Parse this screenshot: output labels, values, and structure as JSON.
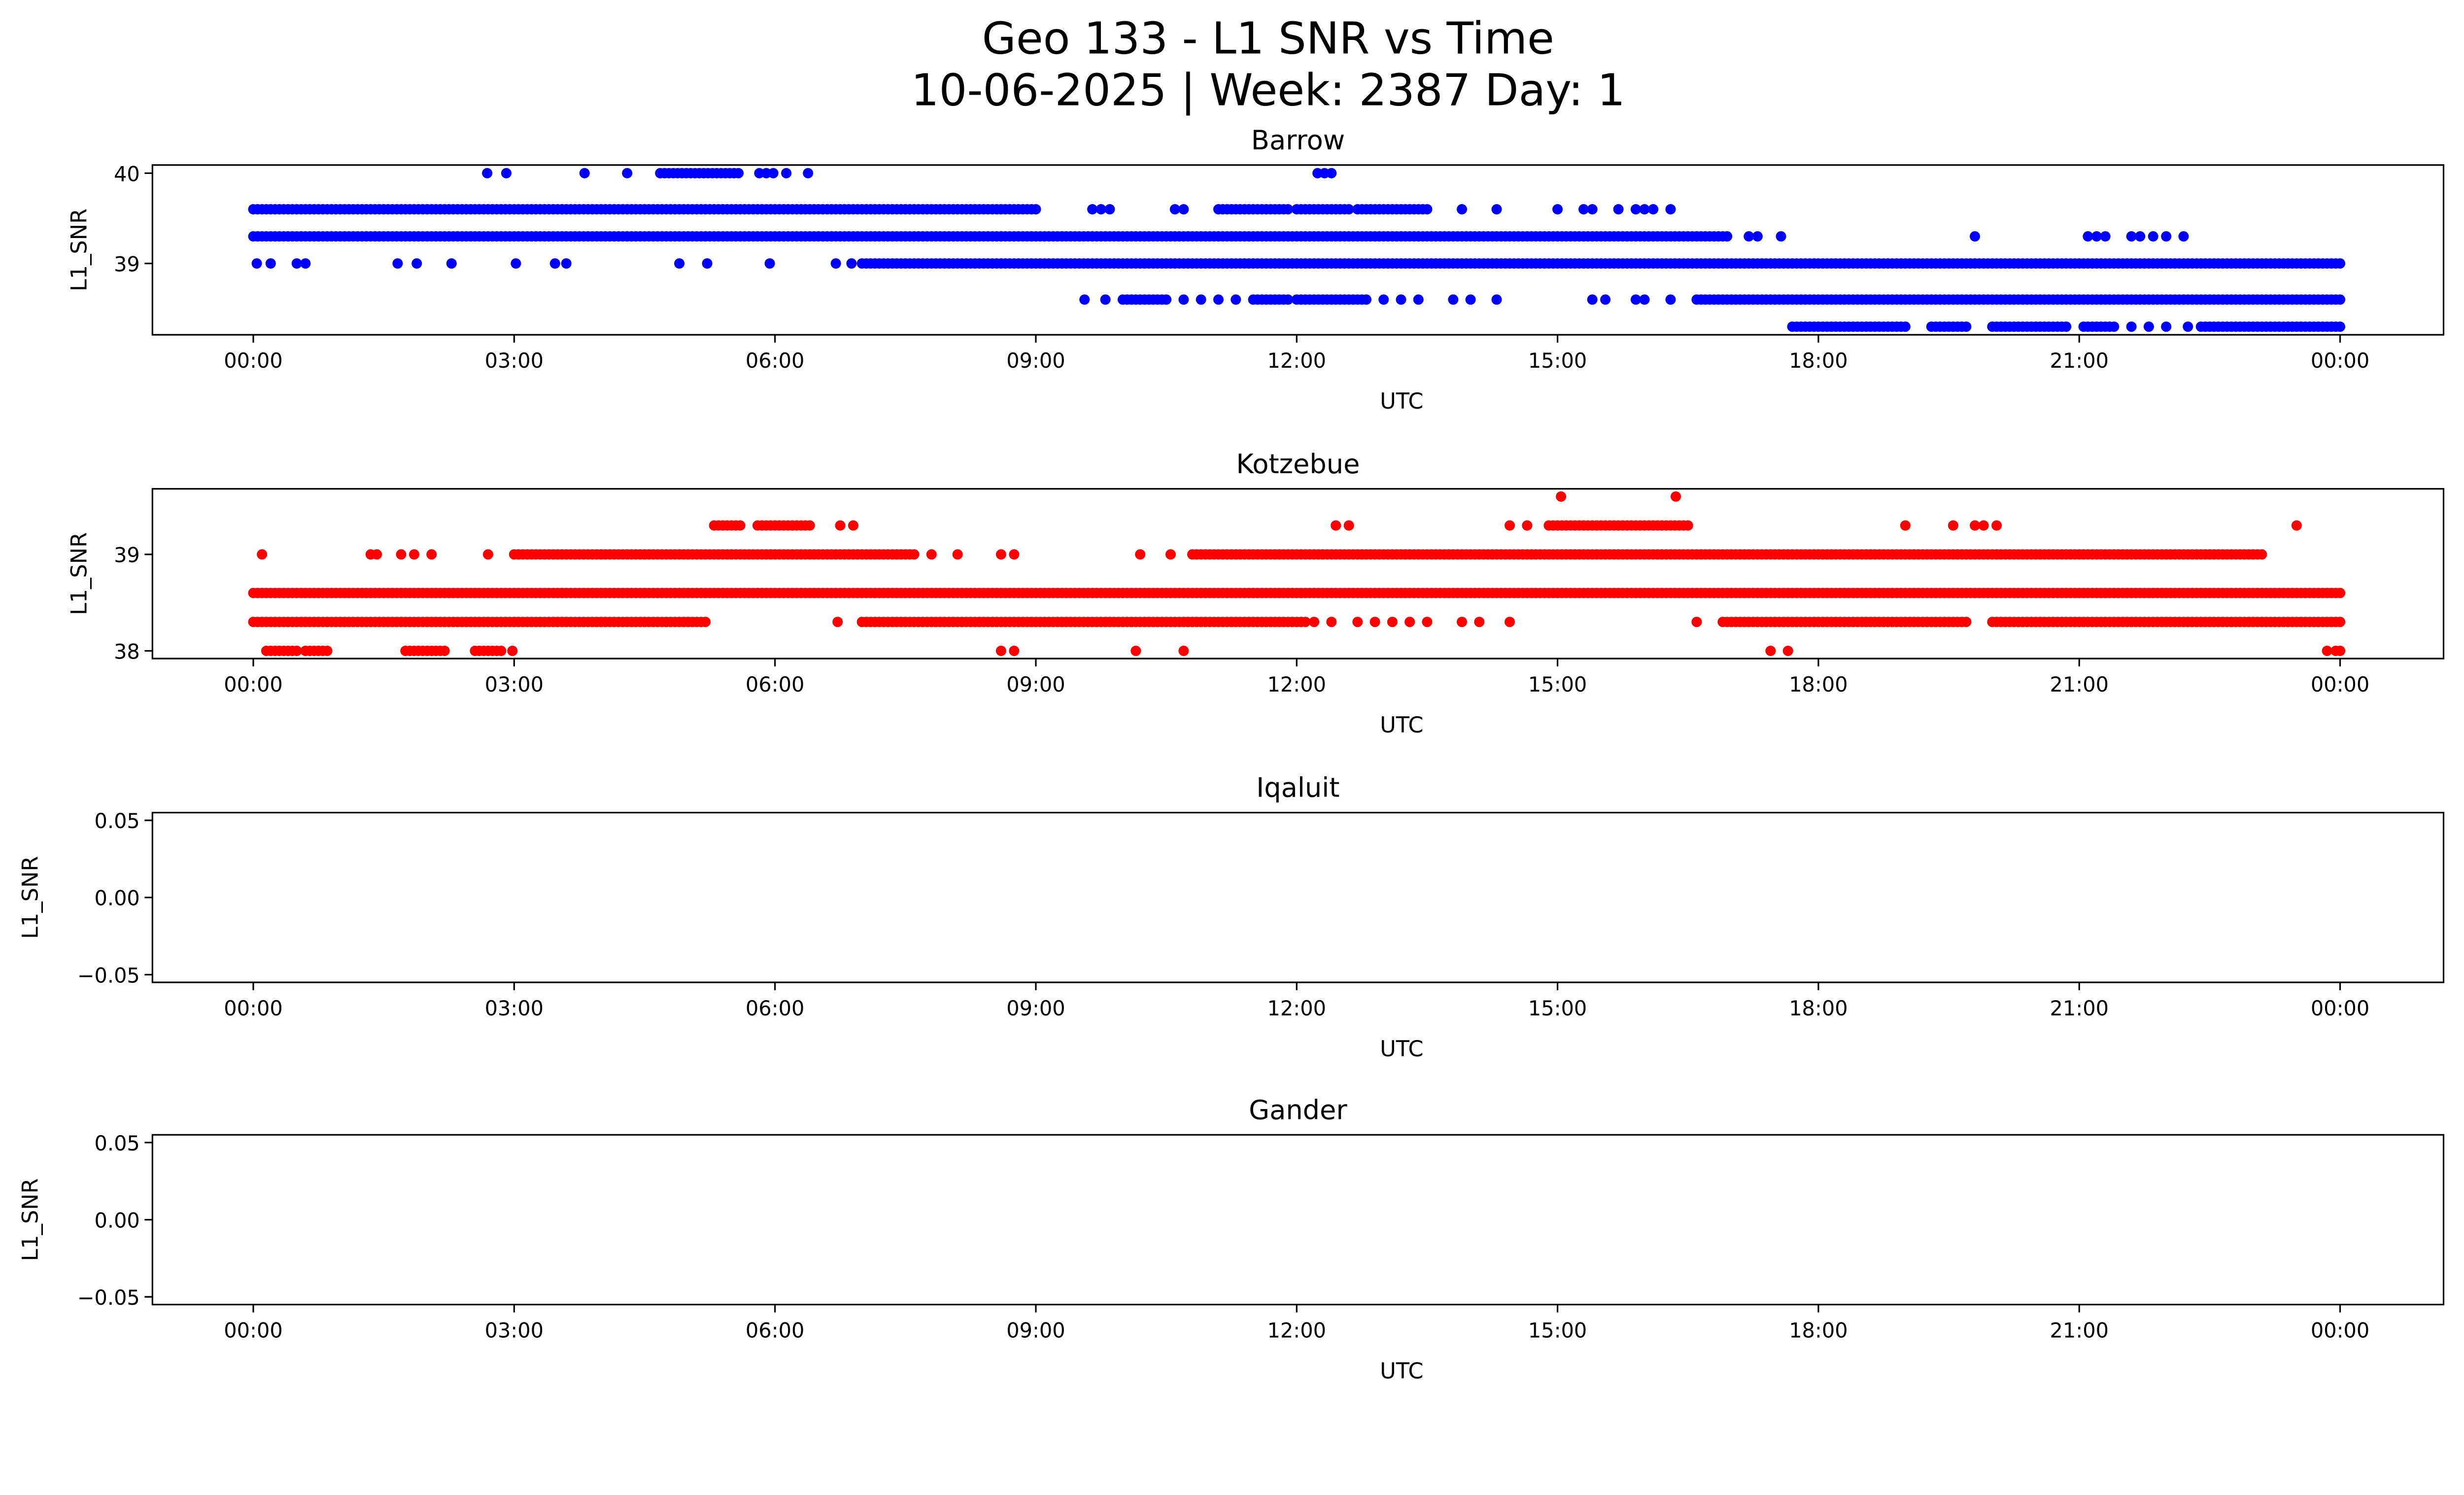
{
  "chart_data": {
    "type": "scatter",
    "title_line1": "Geo 133 - L1 SNR vs Time",
    "title_line2": "10-06-2025 | Week: 2387 Day: 1",
    "x_tick_labels": [
      "00:00",
      "03:00",
      "06:00",
      "09:00",
      "12:00",
      "15:00",
      "18:00",
      "21:00",
      "00:00"
    ],
    "x_tick_hours": [
      0,
      3,
      6,
      9,
      12,
      15,
      18,
      21,
      24
    ],
    "xlim_hours": [
      -1.16,
      25.19
    ],
    "subplots": [
      {
        "title": "Barrow",
        "xlabel": "UTC",
        "ylabel": "L1_SNR",
        "color": "#0000ff",
        "ylim": [
          38.21,
          40.09
        ],
        "yticks": [
          39,
          40
        ],
        "ytick_labels": [
          "39",
          "40"
        ],
        "levels": [
          {
            "snr": 40.0,
            "runs": [
              [
                4.68,
                5.6
              ]
            ],
            "points": [
              2.69,
              2.91,
              3.81,
              4.3,
              5.82,
              5.9,
              5.98,
              6.13,
              6.38,
              12.24,
              12.32,
              12.4
            ]
          },
          {
            "snr": 39.6,
            "runs": [
              [
                0,
                9.02
              ],
              [
                11.1,
                11.9
              ],
              [
                12.0,
                12.6
              ],
              [
                12.7,
                13.5
              ]
            ],
            "points": [
              9.65,
              9.75,
              9.85,
              10.6,
              10.7,
              13.9,
              14.3,
              15.0,
              15.3,
              15.4,
              15.7,
              15.9,
              16.0,
              16.1,
              16.3
            ]
          },
          {
            "snr": 39.3,
            "runs": [
              [
                0,
                16.97
              ]
            ],
            "points": [
              17.2,
              17.3,
              17.57,
              19.8,
              21.1,
              21.2,
              21.3,
              21.6,
              21.7,
              21.85,
              22.0,
              22.2
            ]
          },
          {
            "snr": 39.0,
            "runs": [
              [
                7.0,
                24.0
              ]
            ],
            "points": [
              0.04,
              0.2,
              0.5,
              0.6,
              1.66,
              1.88,
              2.28,
              3.02,
              3.47,
              3.6,
              4.9,
              5.22,
              5.94,
              6.7,
              6.88
            ]
          },
          {
            "snr": 38.6,
            "runs": [
              [
                10.0,
                10.5
              ],
              [
                11.5,
                11.9
              ],
              [
                12.0,
                12.8
              ],
              [
                16.6,
                24.0
              ]
            ],
            "points": [
              9.56,
              9.8,
              10.7,
              10.9,
              11.1,
              11.3,
              13.0,
              13.2,
              13.4,
              13.8,
              14.0,
              14.3,
              15.4,
              15.55,
              15.9,
              16.0,
              16.3
            ]
          },
          {
            "snr": 38.3,
            "runs": [
              [
                17.7,
                19.0
              ],
              [
                19.3,
                19.7
              ],
              [
                20.0,
                20.85
              ],
              [
                21.05,
                21.4
              ],
              [
                22.4,
                24.0
              ]
            ],
            "points": [
              21.6,
              21.8,
              22.0,
              22.25
            ]
          }
        ]
      },
      {
        "title": "Kotzebue",
        "xlabel": "UTC",
        "ylabel": "L1_SNR",
        "color": "#ff0000",
        "ylim": [
          37.92,
          39.68
        ],
        "yticks": [
          38,
          39
        ],
        "ytick_labels": [
          "38",
          "39"
        ],
        "levels": [
          {
            "snr": 39.6,
            "runs": [],
            "points": [
              15.04,
              16.36
            ]
          },
          {
            "snr": 39.3,
            "runs": [
              [
                5.3,
                5.6
              ],
              [
                5.8,
                6.4
              ],
              [
                14.9,
                16.5
              ]
            ],
            "points": [
              6.75,
              6.9,
              12.45,
              12.6,
              14.45,
              14.65,
              19.0,
              19.55,
              19.8,
              19.9,
              20.05,
              23.5
            ]
          },
          {
            "snr": 39.0,
            "runs": [
              [
                3.0,
                7.6
              ],
              [
                10.8,
                23.1
              ]
            ],
            "points": [
              0.1,
              1.35,
              1.42,
              1.7,
              1.85,
              2.05,
              2.7,
              7.8,
              8.1,
              8.6,
              8.75,
              10.2,
              10.55
            ]
          },
          {
            "snr": 38.6,
            "runs": [
              [
                0,
                24.0
              ]
            ],
            "points": []
          },
          {
            "snr": 38.3,
            "runs": [
              [
                0,
                5.2
              ],
              [
                7.0,
                12.1
              ],
              [
                16.9,
                19.7
              ],
              [
                20.0,
                24.0
              ]
            ],
            "points": [
              6.72,
              12.2,
              12.4,
              12.7,
              12.9,
              13.1,
              13.3,
              13.5,
              13.9,
              14.1,
              14.45,
              16.6
            ]
          },
          {
            "snr": 38.0,
            "runs": [
              [
                0.15,
                0.5
              ],
              [
                0.6,
                0.85
              ],
              [
                1.75,
                2.2
              ],
              [
                2.55,
                2.85
              ]
            ],
            "points": [
              2.98,
              8.6,
              8.75,
              10.15,
              10.7,
              17.45,
              17.65,
              23.85,
              23.95,
              24.0
            ]
          }
        ]
      },
      {
        "title": "Iqaluit",
        "xlabel": "UTC",
        "ylabel": "L1_SNR",
        "color": "#0000ff",
        "ylim": [
          -0.055,
          0.055
        ],
        "yticks": [
          -0.05,
          0.0,
          0.05
        ],
        "ytick_labels": [
          "−0.05",
          "0.00",
          "0.05"
        ],
        "levels": []
      },
      {
        "title": "Gander",
        "xlabel": "UTC",
        "ylabel": "L1_SNR",
        "color": "#0000ff",
        "ylim": [
          -0.055,
          0.055
        ],
        "yticks": [
          -0.05,
          0.0,
          0.05
        ],
        "ytick_labels": [
          "−0.05",
          "0.00",
          "0.05"
        ],
        "levels": []
      }
    ]
  }
}
